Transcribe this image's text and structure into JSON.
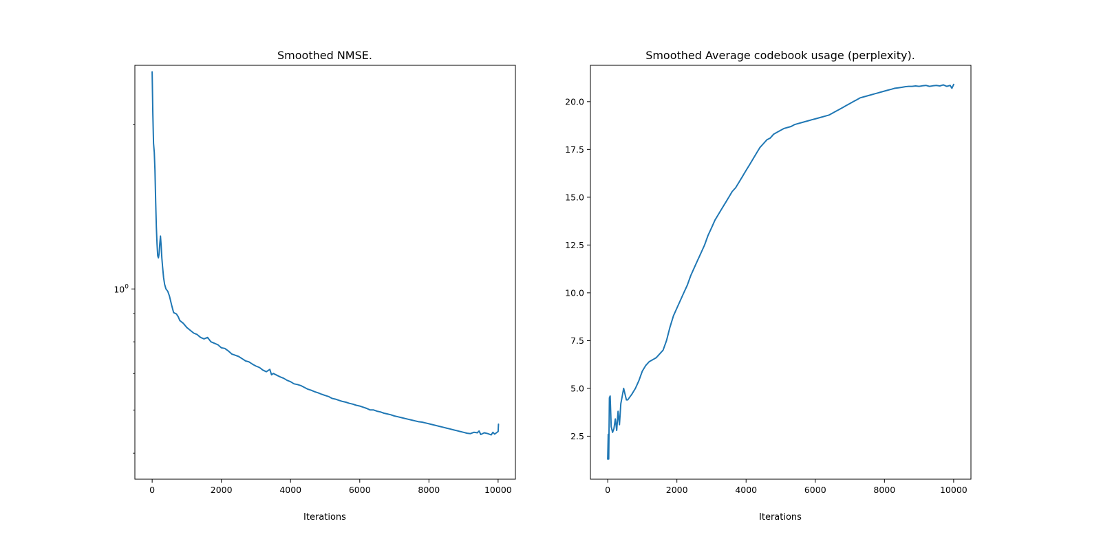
{
  "chart_data": [
    {
      "type": "line",
      "title": "Smoothed NMSE.",
      "xlabel": "Iterations",
      "ylabel": "",
      "yscale": "log",
      "xlim": [
        -500,
        10500
      ],
      "ylim": [
        0.448,
        2.57
      ],
      "xticks": [
        0,
        2000,
        4000,
        6000,
        8000,
        10000
      ],
      "xtick_labels": [
        "0",
        "2000",
        "4000",
        "6000",
        "8000",
        "10000"
      ],
      "yticks_major": [
        1.0
      ],
      "ytick_labels": [
        "10^0"
      ],
      "yticks_minor": [
        0.5,
        0.6,
        0.7,
        0.8,
        0.9,
        2.0
      ],
      "grid": false,
      "legend": "none",
      "color": "#1f77b4",
      "series": [
        {
          "name": "",
          "x": [
            0,
            20,
            40,
            60,
            80,
            100,
            120,
            140,
            160,
            180,
            200,
            220,
            240,
            260,
            280,
            300,
            330,
            360,
            400,
            450,
            500,
            560,
            620,
            700,
            750,
            800,
            900,
            1000,
            1100,
            1200,
            1300,
            1400,
            1500,
            1600,
            1700,
            1800,
            1900,
            2000,
            2100,
            2200,
            2300,
            2400,
            2500,
            2600,
            2700,
            2800,
            2900,
            3000,
            3100,
            3200,
            3300,
            3400,
            3450,
            3500,
            3600,
            3700,
            3800,
            3900,
            4000,
            4100,
            4200,
            4300,
            4400,
            4500,
            4600,
            4700,
            4800,
            4900,
            5000,
            5100,
            5200,
            5300,
            5400,
            5500,
            5600,
            5700,
            5800,
            5900,
            6000,
            6100,
            6200,
            6300,
            6400,
            6500,
            6600,
            6700,
            6800,
            6900,
            7000,
            7100,
            7200,
            7300,
            7400,
            7500,
            7600,
            7700,
            7800,
            7900,
            8000,
            8100,
            8200,
            8300,
            8400,
            8500,
            8600,
            8700,
            8800,
            8900,
            9000,
            9100,
            9200,
            9300,
            9400,
            9450,
            9500,
            9600,
            9700,
            9800,
            9850,
            9900,
            9950,
            10000,
            10010
          ],
          "values": [
            2.5,
            2.1,
            1.85,
            1.78,
            1.65,
            1.45,
            1.3,
            1.21,
            1.15,
            1.14,
            1.16,
            1.21,
            1.25,
            1.2,
            1.14,
            1.1,
            1.05,
            1.02,
            1.0,
            0.99,
            0.97,
            0.935,
            0.905,
            0.9,
            0.89,
            0.875,
            0.865,
            0.85,
            0.84,
            0.83,
            0.825,
            0.815,
            0.81,
            0.815,
            0.8,
            0.795,
            0.79,
            0.78,
            0.778,
            0.77,
            0.76,
            0.756,
            0.752,
            0.745,
            0.738,
            0.735,
            0.728,
            0.722,
            0.718,
            0.71,
            0.705,
            0.712,
            0.696,
            0.7,
            0.695,
            0.69,
            0.686,
            0.68,
            0.676,
            0.67,
            0.668,
            0.665,
            0.66,
            0.655,
            0.652,
            0.648,
            0.645,
            0.641,
            0.638,
            0.635,
            0.63,
            0.628,
            0.625,
            0.622,
            0.62,
            0.617,
            0.615,
            0.612,
            0.61,
            0.607,
            0.604,
            0.6,
            0.6,
            0.597,
            0.595,
            0.592,
            0.59,
            0.588,
            0.585,
            0.583,
            0.581,
            0.579,
            0.577,
            0.575,
            0.573,
            0.571,
            0.57,
            0.568,
            0.566,
            0.564,
            0.562,
            0.56,
            0.558,
            0.556,
            0.554,
            0.552,
            0.55,
            0.548,
            0.546,
            0.544,
            0.543,
            0.546,
            0.545,
            0.549,
            0.541,
            0.545,
            0.543,
            0.54,
            0.546,
            0.542,
            0.545,
            0.548,
            0.565
          ]
        }
      ]
    },
    {
      "type": "line",
      "title": "Smoothed Average codebook usage (perplexity).",
      "xlabel": "Iterations",
      "ylabel": "",
      "yscale": "linear",
      "xlim": [
        -500,
        10500
      ],
      "ylim": [
        0.25,
        21.9
      ],
      "xticks": [
        0,
        2000,
        4000,
        6000,
        8000,
        10000
      ],
      "xtick_labels": [
        "0",
        "2000",
        "4000",
        "6000",
        "8000",
        "10000"
      ],
      "yticks": [
        2.5,
        5.0,
        7.5,
        10.0,
        12.5,
        15.0,
        17.5,
        20.0
      ],
      "ytick_labels": [
        "2.5",
        "5.0",
        "7.5",
        "10.0",
        "12.5",
        "15.0",
        "17.5",
        "20.0"
      ],
      "grid": false,
      "legend": "none",
      "color": "#1f77b4",
      "series": [
        {
          "name": "",
          "x": [
            0,
            15,
            30,
            50,
            70,
            100,
            140,
            180,
            220,
            260,
            300,
            340,
            380,
            420,
            460,
            500,
            540,
            580,
            620,
            700,
            800,
            900,
            1000,
            1100,
            1200,
            1300,
            1400,
            1500,
            1600,
            1700,
            1800,
            1900,
            2000,
            2100,
            2200,
            2300,
            2400,
            2500,
            2600,
            2700,
            2800,
            2900,
            3000,
            3100,
            3200,
            3300,
            3400,
            3500,
            3600,
            3700,
            3800,
            3900,
            4000,
            4100,
            4200,
            4300,
            4400,
            4500,
            4600,
            4700,
            4800,
            4900,
            5000,
            5100,
            5200,
            5300,
            5400,
            5500,
            5600,
            5700,
            5800,
            5900,
            6000,
            6100,
            6200,
            6300,
            6400,
            6500,
            6600,
            6700,
            6800,
            6900,
            7000,
            7100,
            7200,
            7300,
            7400,
            7500,
            7600,
            7700,
            7800,
            7900,
            8000,
            8100,
            8200,
            8300,
            8400,
            8500,
            8600,
            8700,
            8800,
            8900,
            9000,
            9100,
            9200,
            9300,
            9400,
            9500,
            9600,
            9700,
            9800,
            9900,
            9950,
            10000
          ],
          "values": [
            1.3,
            2.6,
            1.3,
            4.5,
            4.6,
            3.0,
            2.7,
            2.9,
            3.4,
            2.8,
            3.8,
            3.1,
            4.2,
            4.6,
            5.0,
            4.7,
            4.4,
            4.4,
            4.5,
            4.7,
            5.0,
            5.4,
            5.9,
            6.2,
            6.4,
            6.5,
            6.6,
            6.8,
            7.0,
            7.5,
            8.2,
            8.8,
            9.2,
            9.6,
            10.0,
            10.4,
            10.9,
            11.3,
            11.7,
            12.1,
            12.5,
            13.0,
            13.4,
            13.8,
            14.1,
            14.4,
            14.7,
            15.0,
            15.3,
            15.5,
            15.8,
            16.1,
            16.4,
            16.7,
            17.0,
            17.3,
            17.6,
            17.8,
            18.0,
            18.1,
            18.3,
            18.4,
            18.5,
            18.6,
            18.65,
            18.7,
            18.8,
            18.85,
            18.9,
            18.95,
            19.0,
            19.05,
            19.1,
            19.15,
            19.2,
            19.25,
            19.3,
            19.4,
            19.5,
            19.6,
            19.7,
            19.8,
            19.9,
            20.0,
            20.1,
            20.2,
            20.25,
            20.3,
            20.35,
            20.4,
            20.45,
            20.5,
            20.55,
            20.6,
            20.65,
            20.7,
            20.72,
            20.75,
            20.78,
            20.8,
            20.8,
            20.82,
            20.8,
            20.83,
            20.85,
            20.8,
            20.83,
            20.85,
            20.82,
            20.88,
            20.8,
            20.85,
            20.7,
            20.9
          ]
        }
      ]
    }
  ]
}
